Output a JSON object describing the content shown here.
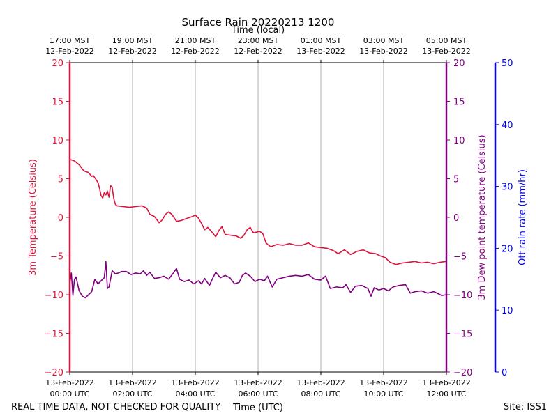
{
  "chart_data": {
    "type": "line",
    "title": "Surface Rain 20220213 1200",
    "top_axis_label": "Time (local)",
    "xlabel": "Time (UTC)",
    "xlim_hours": [
      0,
      12
    ],
    "top_ticks": [
      {
        "hour": 0,
        "line1": "17:00 MST",
        "line2": "12-Feb-2022"
      },
      {
        "hour": 2,
        "line1": "19:00 MST",
        "line2": "12-Feb-2022"
      },
      {
        "hour": 4,
        "line1": "21:00 MST",
        "line2": "12-Feb-2022"
      },
      {
        "hour": 6,
        "line1": "23:00 MST",
        "line2": "12-Feb-2022"
      },
      {
        "hour": 8,
        "line1": "01:00 MST",
        "line2": "13-Feb-2022"
      },
      {
        "hour": 10,
        "line1": "03:00 MST",
        "line2": "13-Feb-2022"
      },
      {
        "hour": 12,
        "line1": "05:00 MST",
        "line2": "13-Feb-2022"
      }
    ],
    "bottom_ticks": [
      {
        "hour": 0,
        "line1": "13-Feb-2022",
        "line2": "00:00 UTC"
      },
      {
        "hour": 2,
        "line1": "13-Feb-2022",
        "line2": "02:00 UTC"
      },
      {
        "hour": 4,
        "line1": "13-Feb-2022",
        "line2": "04:00 UTC"
      },
      {
        "hour": 6,
        "line1": "13-Feb-2022",
        "line2": "06:00 UTC"
      },
      {
        "hour": 8,
        "line1": "13-Feb-2022",
        "line2": "08:00 UTC"
      },
      {
        "hour": 10,
        "line1": "13-Feb-2022",
        "line2": "10:00 UTC"
      },
      {
        "hour": 12,
        "line1": "13-Feb-2022",
        "line2": "12:00 UTC"
      }
    ],
    "grid": "vertical",
    "y_left": {
      "label": "3m Temperature (Celsius)",
      "lim": [
        -20,
        20
      ],
      "ticks": [
        20,
        15,
        10,
        5,
        0,
        -5,
        -10,
        -15,
        -20
      ],
      "color": "#dc143c"
    },
    "y_right1": {
      "label": "3m Dew point temperature (Celsius)",
      "lim": [
        -20,
        20
      ],
      "ticks": [
        20,
        15,
        10,
        5,
        0,
        -5,
        -10,
        -15,
        -20
      ],
      "color": "#800080"
    },
    "y_right2": {
      "label": "Ott rain rate (mm/hr)",
      "lim": [
        0,
        50
      ],
      "ticks": [
        50,
        40,
        30,
        20,
        10,
        0
      ],
      "color": "#0000ee"
    },
    "series": [
      {
        "axis": "left",
        "color": "#dc143c",
        "points": [
          [
            0.0,
            7.5
          ],
          [
            0.15,
            7.3
          ],
          [
            0.3,
            6.8
          ],
          [
            0.45,
            6.0
          ],
          [
            0.6,
            5.8
          ],
          [
            0.7,
            5.3
          ],
          [
            0.75,
            5.4
          ],
          [
            0.82,
            5.0
          ],
          [
            0.9,
            4.5
          ],
          [
            0.95,
            3.7
          ],
          [
            1.0,
            2.8
          ],
          [
            1.05,
            2.5
          ],
          [
            1.1,
            3.2
          ],
          [
            1.15,
            2.9
          ],
          [
            1.2,
            3.4
          ],
          [
            1.25,
            2.6
          ],
          [
            1.3,
            4.1
          ],
          [
            1.35,
            3.9
          ],
          [
            1.4,
            2.5
          ],
          [
            1.45,
            1.7
          ],
          [
            1.5,
            1.5
          ],
          [
            1.7,
            1.4
          ],
          [
            1.9,
            1.3
          ],
          [
            2.1,
            1.4
          ],
          [
            2.3,
            1.5
          ],
          [
            2.45,
            1.2
          ],
          [
            2.55,
            0.4
          ],
          [
            2.7,
            0.1
          ],
          [
            2.85,
            -0.7
          ],
          [
            2.95,
            -0.3
          ],
          [
            3.05,
            0.4
          ],
          [
            3.15,
            0.7
          ],
          [
            3.25,
            0.4
          ],
          [
            3.4,
            -0.5
          ],
          [
            3.55,
            -0.4
          ],
          [
            3.75,
            -0.1
          ],
          [
            3.9,
            0.1
          ],
          [
            4.0,
            0.3
          ],
          [
            4.1,
            -0.1
          ],
          [
            4.2,
            -0.8
          ],
          [
            4.3,
            -1.6
          ],
          [
            4.4,
            -1.3
          ],
          [
            4.55,
            -2.0
          ],
          [
            4.65,
            -2.5
          ],
          [
            4.75,
            -1.7
          ],
          [
            4.85,
            -1.2
          ],
          [
            4.95,
            -2.2
          ],
          [
            5.1,
            -2.3
          ],
          [
            5.3,
            -2.4
          ],
          [
            5.45,
            -2.7
          ],
          [
            5.55,
            -2.3
          ],
          [
            5.65,
            -1.6
          ],
          [
            5.75,
            -1.3
          ],
          [
            5.85,
            -2.0
          ],
          [
            6.05,
            -1.8
          ],
          [
            6.15,
            -2.1
          ],
          [
            6.25,
            -3.3
          ],
          [
            6.4,
            -3.8
          ],
          [
            6.6,
            -3.5
          ],
          [
            6.8,
            -3.6
          ],
          [
            7.0,
            -3.4
          ],
          [
            7.2,
            -3.6
          ],
          [
            7.4,
            -3.6
          ],
          [
            7.6,
            -3.3
          ],
          [
            7.8,
            -3.8
          ],
          [
            8.0,
            -3.9
          ],
          [
            8.2,
            -4.0
          ],
          [
            8.4,
            -4.3
          ],
          [
            8.55,
            -4.7
          ],
          [
            8.75,
            -4.2
          ],
          [
            8.95,
            -4.8
          ],
          [
            9.15,
            -4.4
          ],
          [
            9.35,
            -4.2
          ],
          [
            9.55,
            -4.6
          ],
          [
            9.75,
            -4.7
          ],
          [
            9.9,
            -5.0
          ],
          [
            10.05,
            -5.2
          ],
          [
            10.2,
            -5.8
          ],
          [
            10.4,
            -6.1
          ],
          [
            10.6,
            -5.9
          ],
          [
            10.8,
            -5.8
          ],
          [
            11.0,
            -5.7
          ],
          [
            11.2,
            -5.9
          ],
          [
            11.4,
            -5.8
          ],
          [
            11.6,
            -6.0
          ],
          [
            11.8,
            -5.8
          ],
          [
            12.0,
            -5.7
          ]
        ]
      },
      {
        "axis": "right1",
        "color": "#800080",
        "points": [
          [
            0.0,
            -8.5
          ],
          [
            0.05,
            -7.2
          ],
          [
            0.1,
            -10.1
          ],
          [
            0.15,
            -8.0
          ],
          [
            0.2,
            -7.7
          ],
          [
            0.3,
            -9.5
          ],
          [
            0.4,
            -10.2
          ],
          [
            0.5,
            -10.4
          ],
          [
            0.6,
            -10.0
          ],
          [
            0.7,
            -9.6
          ],
          [
            0.8,
            -8.0
          ],
          [
            0.9,
            -8.6
          ],
          [
            1.0,
            -8.2
          ],
          [
            1.1,
            -7.8
          ],
          [
            1.15,
            -5.7
          ],
          [
            1.2,
            -9.2
          ],
          [
            1.25,
            -9.0
          ],
          [
            1.35,
            -6.9
          ],
          [
            1.45,
            -7.3
          ],
          [
            1.55,
            -7.2
          ],
          [
            1.65,
            -7.0
          ],
          [
            1.8,
            -7.0
          ],
          [
            1.95,
            -7.4
          ],
          [
            2.1,
            -7.2
          ],
          [
            2.25,
            -7.3
          ],
          [
            2.35,
            -6.9
          ],
          [
            2.45,
            -7.5
          ],
          [
            2.55,
            -7.1
          ],
          [
            2.7,
            -7.9
          ],
          [
            2.85,
            -7.8
          ],
          [
            3.0,
            -7.6
          ],
          [
            3.15,
            -8.0
          ],
          [
            3.3,
            -7.2
          ],
          [
            3.4,
            -6.6
          ],
          [
            3.5,
            -8.0
          ],
          [
            3.65,
            -8.3
          ],
          [
            3.8,
            -8.1
          ],
          [
            3.95,
            -8.6
          ],
          [
            4.1,
            -8.2
          ],
          [
            4.2,
            -8.6
          ],
          [
            4.3,
            -7.9
          ],
          [
            4.45,
            -8.8
          ],
          [
            4.55,
            -7.9
          ],
          [
            4.65,
            -7.1
          ],
          [
            4.8,
            -7.8
          ],
          [
            4.95,
            -7.5
          ],
          [
            5.1,
            -7.8
          ],
          [
            5.25,
            -8.6
          ],
          [
            5.4,
            -8.4
          ],
          [
            5.5,
            -7.5
          ],
          [
            5.6,
            -7.2
          ],
          [
            5.75,
            -7.6
          ],
          [
            5.9,
            -8.3
          ],
          [
            6.05,
            -8.0
          ],
          [
            6.2,
            -8.2
          ],
          [
            6.3,
            -7.6
          ],
          [
            6.45,
            -9.0
          ],
          [
            6.6,
            -8.0
          ],
          [
            6.8,
            -7.8
          ],
          [
            7.0,
            -7.6
          ],
          [
            7.2,
            -7.5
          ],
          [
            7.4,
            -7.6
          ],
          [
            7.6,
            -7.4
          ],
          [
            7.8,
            -8.0
          ],
          [
            8.0,
            -8.1
          ],
          [
            8.15,
            -7.6
          ],
          [
            8.3,
            -9.2
          ],
          [
            8.5,
            -9.0
          ],
          [
            8.7,
            -9.1
          ],
          [
            8.8,
            -8.7
          ],
          [
            8.95,
            -9.7
          ],
          [
            9.1,
            -8.9
          ],
          [
            9.3,
            -8.8
          ],
          [
            9.5,
            -9.2
          ],
          [
            9.6,
            -10.2
          ],
          [
            9.7,
            -9.1
          ],
          [
            9.85,
            -9.4
          ],
          [
            10.0,
            -9.2
          ],
          [
            10.15,
            -9.5
          ],
          [
            10.3,
            -9.0
          ],
          [
            10.5,
            -8.8
          ],
          [
            10.7,
            -8.7
          ],
          [
            10.85,
            -9.8
          ],
          [
            11.0,
            -9.6
          ],
          [
            11.2,
            -9.5
          ],
          [
            11.4,
            -9.8
          ],
          [
            11.6,
            -9.6
          ],
          [
            11.75,
            -9.9
          ],
          [
            11.85,
            -10.1
          ],
          [
            12.0,
            -10.0
          ]
        ]
      }
    ]
  },
  "footer": {
    "left": "REAL TIME DATA, NOT CHECKED FOR QUALITY",
    "right": "Site: ISS1"
  }
}
